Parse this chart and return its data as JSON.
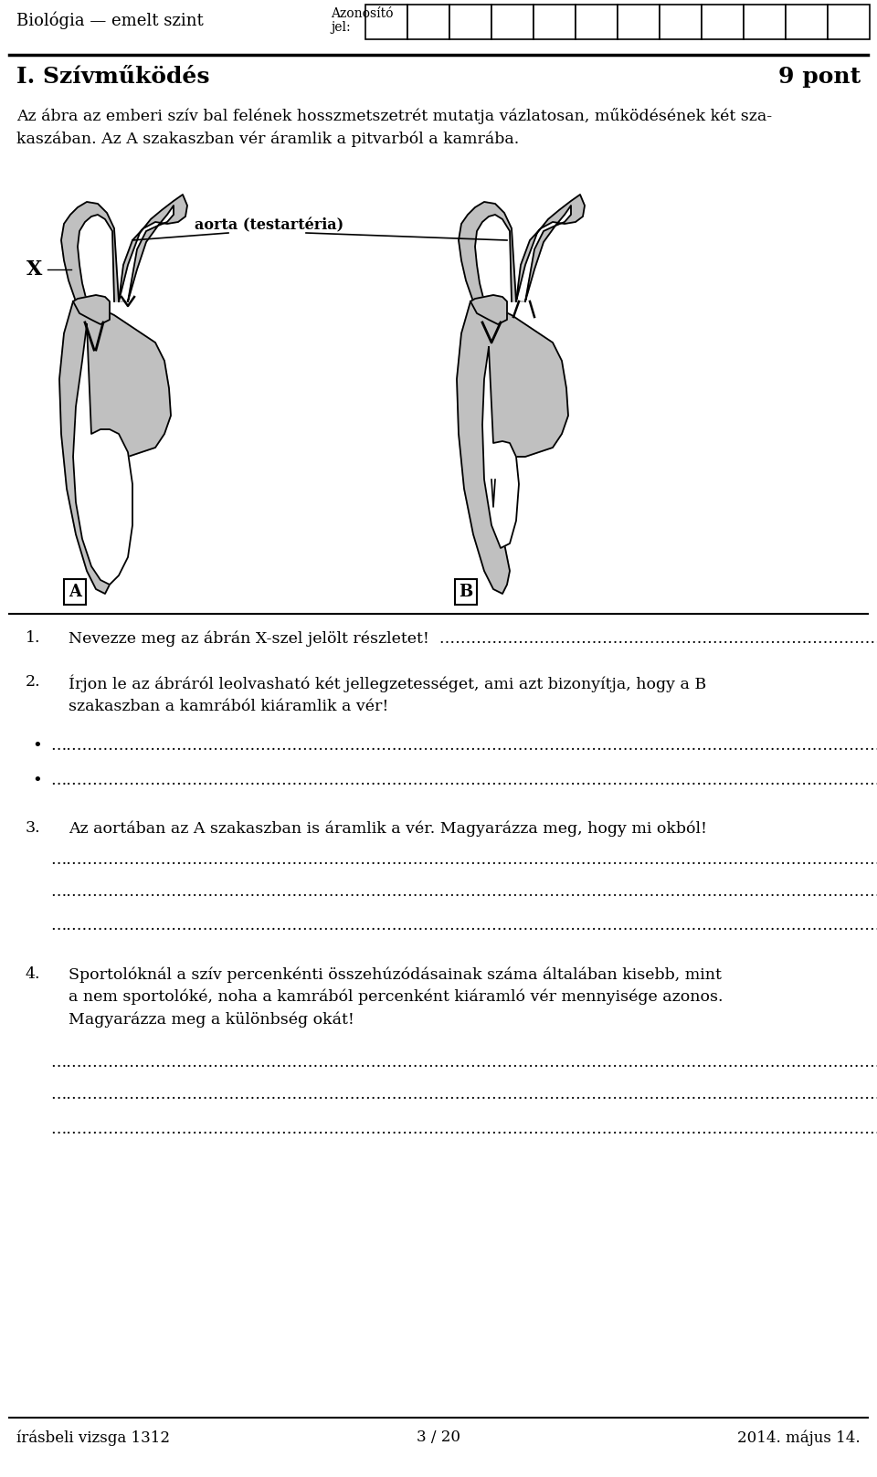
{
  "header_left": "Biológia — emelt szint",
  "header_center_label": "Azonosító\njel:",
  "header_grid_cols": 12,
  "title": "I. Szívműködés",
  "points": "9 pont",
  "intro_text": "Az ábra az emberi szív bal felének hosszmetszetrét mutatja vázlatosan, működésének két sza-\nkaszában. Az A szakaszban vér áramlik a pitvarból a kamrába.",
  "aorta_label": "aorta (testartéria)",
  "label_x": "X",
  "label_a": "A",
  "label_b": "B",
  "q1_num": "1.",
  "q1_text": "Nevezze meg az ábrán X-szel jelölt részletet!",
  "q1_dots": "……………………………………………………………………………………………………………………",
  "q2_num": "2.",
  "q2_text": "Írjon le az ábráról leolvasható két jellegzetességet, ami azt bizonyítja, hogy a B\nszakaszban a kamrából kiáramlik a vér!",
  "q2_bullet1": "•",
  "q2_dots1": "………………………………………………………………………………………………………………………………………………………………………………………………………………………………",
  "q2_bullet2": "•",
  "q2_dots2": "………………………………………………………………………………………………………………………………………………………………………………………………………………………………",
  "q3_num": "3.",
  "q3_text": "Az aortában az A szakaszban is áramlik a vér. Magyarázza meg, hogy mi okból!",
  "q3_dots1": "………………………………………………………………………………………………………………………………………………………………………………………………………………………………",
  "q3_dots2": "……………………………………………………………………………………………………………………………………………………………………………………………………………………………….",
  "q3_dots3": "………………………………………………………………………………………………………………………………………………………………………………………………………………………………",
  "q4_num": "4.",
  "q4_text": "Sportolóknál a szív percenkénti összehúzódásainak száma általában kisebb, mint\na nem sportolóké, noha a kamrából percenként kiáramló vér mennyisége azonos.\nMagyarázza meg a különbség okát!",
  "q4_dots1": "………………………………………………………………………………………………………………………………………………………………………………………………………………………….",
  "q4_dots2": "………………………………………………………………………………………………………………………………………………………………………………………………………………………….",
  "q4_dots3": "………………………………………………………………………………………………………………………………………………………………………………………………………………………….",
  "footer_left": "írásbeli vizsga 1312",
  "footer_center": "3 / 20",
  "footer_right": "2014. május 14.",
  "bg_color": "#ffffff",
  "text_color": "#000000",
  "gray_fill": "#c0c0c0"
}
